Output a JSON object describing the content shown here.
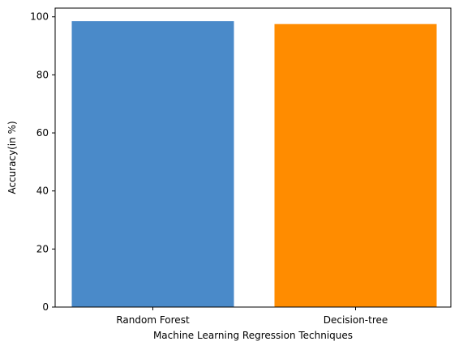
{
  "chart_data": {
    "type": "bar",
    "title": "",
    "xlabel": "Machine Learning Regression Techniques",
    "ylabel": "Accuracy(in %)",
    "categories": [
      "Random Forest",
      "Decision-tree"
    ],
    "values": [
      98.5,
      97.5
    ],
    "colors": [
      "#4a8ac9",
      "#ff8c00"
    ],
    "ylim": [
      0,
      103
    ],
    "yticks": [
      0,
      20,
      40,
      60,
      80,
      100
    ],
    "grid": false,
    "legend": "none"
  }
}
